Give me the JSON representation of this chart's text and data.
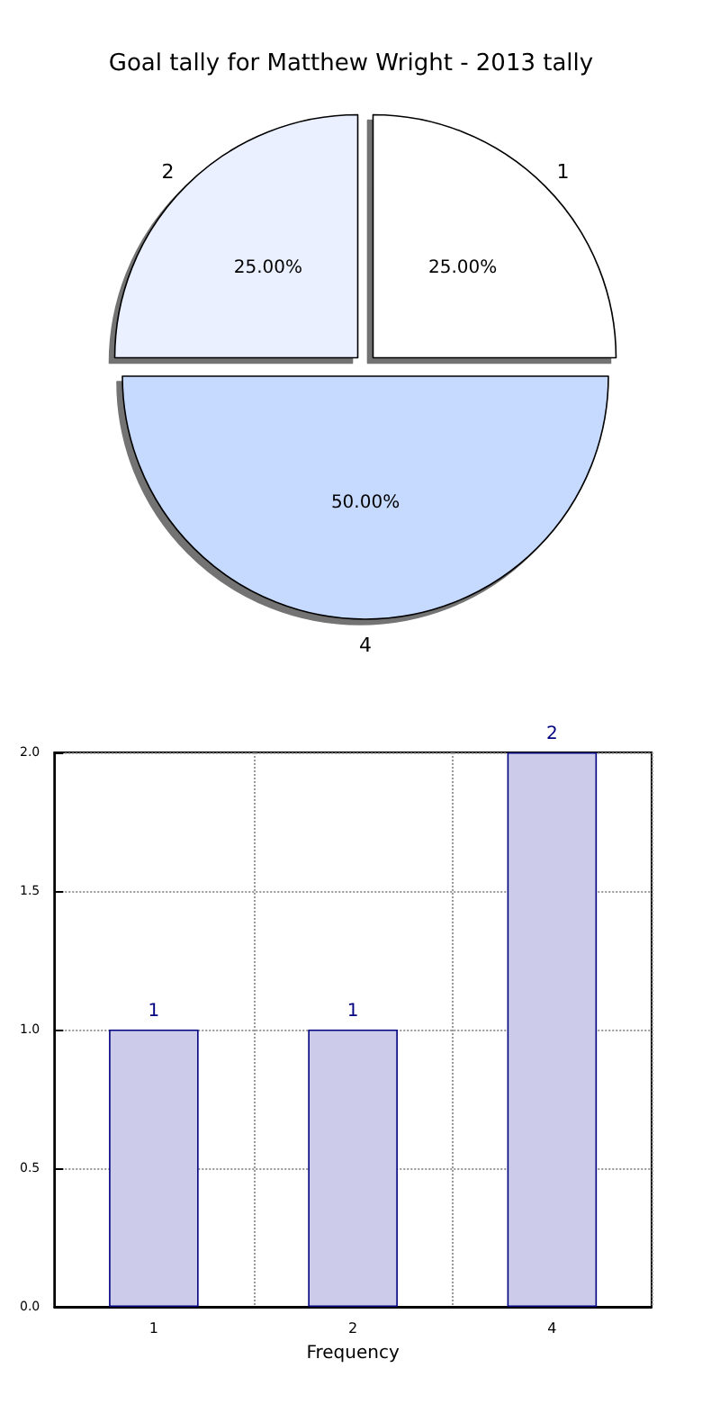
{
  "chart_data": [
    {
      "type": "pie",
      "title": "Goal tally for Matthew Wright - 2013 tally",
      "categories": [
        "1",
        "2",
        "4"
      ],
      "values": [
        25,
        25,
        50
      ],
      "colors": [
        "#ffffff",
        "#eaf0ff",
        "#c6d9ff"
      ],
      "value_labels": [
        "25.00%",
        "25.00%",
        "50.00%"
      ]
    },
    {
      "type": "bar",
      "categories": [
        "1",
        "2",
        "4"
      ],
      "values": [
        1,
        1,
        2
      ],
      "color": "#ccccea",
      "xlabel": "Frequency",
      "ylim": [
        0,
        2
      ],
      "yticks": [
        {
          "value": 0,
          "label": "0.0"
        },
        {
          "value": 0.5,
          "label": "0.5"
        },
        {
          "value": 1,
          "label": "1.0"
        },
        {
          "value": 1.5,
          "label": "1.5"
        },
        {
          "value": 2,
          "label": "2.0"
        }
      ],
      "grid": true,
      "data_labels": true
    }
  ]
}
